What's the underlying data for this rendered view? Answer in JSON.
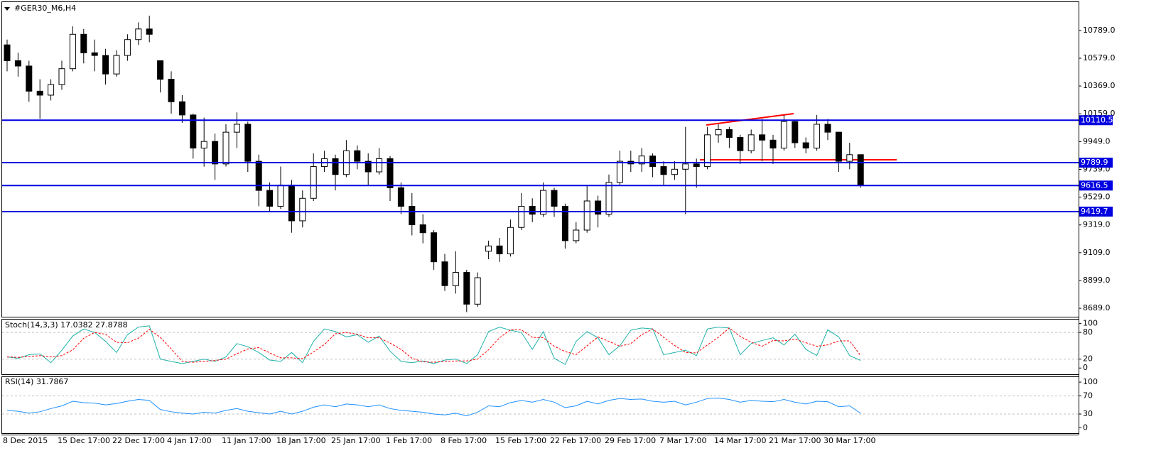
{
  "chart_data": [
    {
      "type": "candlestick",
      "title": "#GER30_M6,H4",
      "categories": [
        "8 Dec 2015",
        null,
        null,
        null,
        null,
        "15 Dec 17:00",
        null,
        null,
        null,
        null,
        "22 Dec 17:00",
        null,
        null,
        null,
        null,
        "4 Jan 17:00",
        null,
        null,
        null,
        null,
        "11 Jan 17:00",
        null,
        null,
        null,
        null,
        "18 Jan 17:00",
        null,
        null,
        null,
        null,
        "25 Jan 17:00",
        null,
        null,
        null,
        null,
        "1 Feb 17:00",
        null,
        null,
        null,
        null,
        "8 Feb 17:00",
        null,
        null,
        null,
        null,
        "15 Feb 17:00",
        null,
        null,
        null,
        null,
        "22 Feb 17:00",
        null,
        null,
        null,
        null,
        "29 Feb 17:00",
        null,
        null,
        null,
        null,
        "7 Mar 17:00",
        null,
        null,
        null,
        null,
        "14 Mar 17:00",
        null,
        null,
        null,
        null,
        "21 Mar 17:00",
        null,
        null,
        null,
        null,
        "30 Mar 17:00",
        null,
        null,
        null
      ],
      "open": [
        10680,
        10560,
        10520,
        10330,
        10300,
        10380,
        10500,
        10760,
        10620,
        10600,
        10460,
        10600,
        10720,
        10800,
        10560,
        10420,
        10250,
        10150,
        9900,
        9950,
        9780,
        10020,
        10080,
        9800,
        9580,
        9460,
        9620,
        9350,
        9520,
        9760,
        9820,
        9700,
        9880,
        9800,
        9720,
        9820,
        9600,
        9460,
        9320,
        9260,
        9040,
        8860,
        8960,
        8720,
        9120,
        9160,
        9100,
        9300,
        9460,
        9400,
        9580,
        9460,
        9200,
        9280,
        9500,
        9400,
        9640,
        9800,
        9780,
        9840,
        9760,
        9700,
        9740,
        9780,
        9760,
        10000,
        10040,
        9980,
        9880,
        10000,
        9960,
        9900,
        10100,
        9940,
        9900,
        10080,
        10020,
        9800,
        9850
      ],
      "high": [
        10720,
        10620,
        10560,
        10420,
        10420,
        10560,
        10820,
        10800,
        10720,
        10650,
        10640,
        10760,
        10850,
        10900,
        10560,
        10480,
        10300,
        10160,
        10130,
        10010,
        10080,
        10170,
        10100,
        9850,
        9640,
        9760,
        9660,
        9580,
        9860,
        9880,
        9850,
        9960,
        9920,
        9860,
        9900,
        9840,
        9640,
        9560,
        9400,
        9280,
        9100,
        9120,
        8980,
        8960,
        9200,
        9220,
        9360,
        9560,
        9520,
        9640,
        9600,
        9480,
        9340,
        9620,
        9540,
        9700,
        9880,
        9880,
        9900,
        9860,
        9800,
        9800,
        10060,
        9820,
        10060,
        10080,
        10060,
        10000,
        10040,
        10120,
        10000,
        10150,
        10110,
        9980,
        10150,
        10120,
        10020,
        9940,
        9850
      ],
      "low": [
        10480,
        10440,
        10250,
        10120,
        10260,
        10340,
        10480,
        10540,
        10480,
        10380,
        10440,
        10560,
        10680,
        10700,
        10320,
        10160,
        10090,
        9820,
        9760,
        9660,
        9760,
        9900,
        9720,
        9460,
        9420,
        9440,
        9260,
        9300,
        9500,
        9720,
        9580,
        9680,
        9740,
        9620,
        9700,
        9500,
        9400,
        9240,
        9180,
        8980,
        8820,
        8800,
        8660,
        8700,
        9060,
        9040,
        9080,
        9280,
        9340,
        9380,
        9380,
        9140,
        9180,
        9260,
        9300,
        9380,
        9620,
        9720,
        9720,
        9680,
        9620,
        9660,
        9400,
        9600,
        9740,
        9940,
        9900,
        9780,
        9860,
        9800,
        9780,
        9880,
        9900,
        9860,
        9880,
        9960,
        9720,
        9740,
        9600
      ],
      "close": [
        10560,
        10520,
        10330,
        10300,
        10380,
        10500,
        10760,
        10620,
        10600,
        10460,
        10600,
        10720,
        10800,
        10760,
        10420,
        10250,
        10150,
        9900,
        9950,
        9780,
        10020,
        10080,
        9800,
        9580,
        9460,
        9620,
        9350,
        9520,
        9760,
        9820,
        9700,
        9880,
        9800,
        9720,
        9820,
        9600,
        9460,
        9320,
        9260,
        9040,
        8860,
        8960,
        8720,
        8920,
        9160,
        9100,
        9300,
        9460,
        9400,
        9580,
        9460,
        9200,
        9280,
        9500,
        9400,
        9640,
        9800,
        9780,
        9840,
        9760,
        9700,
        9740,
        9780,
        9760,
        10000,
        10040,
        9980,
        9880,
        10000,
        9960,
        9900,
        10100,
        9940,
        9900,
        10080,
        10020,
        9800,
        9850,
        9620
      ],
      "ylim": [
        8625,
        11003
      ],
      "yticks": [
        {
          "value": 10789,
          "label": "10789.0"
        },
        {
          "value": 10579,
          "label": "10579.0"
        },
        {
          "value": 10369,
          "label": "10369.0"
        },
        {
          "value": 10159,
          "label": "10159.0"
        },
        {
          "value": 9949,
          "label": "9949.0"
        },
        {
          "value": 9739,
          "label": "9739.0"
        },
        {
          "value": 9529,
          "label": "9529.0"
        },
        {
          "value": 9319,
          "label": "9319.0"
        },
        {
          "value": 9109,
          "label": "9109.0"
        },
        {
          "value": 8899,
          "label": "8899.0"
        },
        {
          "value": 8689,
          "label": "8689.0"
        }
      ],
      "levels": [
        {
          "value": 10110.5,
          "label": "10110.5"
        },
        {
          "value": 9789.9,
          "label": "9789.9"
        },
        {
          "value": 9616.5,
          "label": "9616.5"
        },
        {
          "value": 9419.7,
          "label": "9419.7"
        }
      ],
      "level_color": "#0000e0",
      "up_color": "#ffffff",
      "down_color": "#000000"
    },
    {
      "type": "line",
      "title": "Stoch(14,3,3) 17.0382 27.8788",
      "series": [
        {
          "color": "#20b2aa",
          "dashed": false,
          "values": [
            25,
            22,
            30,
            32,
            12,
            40,
            72,
            88,
            80,
            60,
            35,
            75,
            92,
            95,
            20,
            15,
            10,
            15,
            20,
            15,
            25,
            55,
            48,
            35,
            18,
            15,
            35,
            12,
            60,
            88,
            82,
            70,
            75,
            58,
            72,
            38,
            15,
            12,
            16,
            10,
            18,
            20,
            10,
            30,
            82,
            92,
            85,
            80,
            42,
            82,
            22,
            8,
            60,
            82,
            68,
            30,
            50,
            85,
            90,
            88,
            30,
            35,
            40,
            28,
            88,
            92,
            90,
            30,
            55,
            62,
            68,
            52,
            76,
            42,
            28,
            86,
            70,
            28,
            17.0382
          ]
        },
        {
          "color": "#ff0000",
          "dashed": true,
          "values": [
            25,
            24,
            26,
            28,
            25,
            28,
            41,
            67,
            80,
            76,
            58,
            57,
            67,
            87,
            69,
            43,
            15,
            13,
            15,
            17,
            20,
            32,
            43,
            46,
            34,
            23,
            23,
            21,
            36,
            53,
            77,
            80,
            76,
            68,
            68,
            56,
            42,
            22,
            14,
            13,
            15,
            16,
            16,
            20,
            41,
            68,
            86,
            86,
            69,
            68,
            49,
            37,
            30,
            50,
            70,
            60,
            49,
            55,
            75,
            88,
            69,
            51,
            35,
            34,
            52,
            69,
            90,
            71,
            58,
            49,
            62,
            61,
            65,
            57,
            49,
            52,
            61,
            61,
            27.8788
          ]
        }
      ],
      "ylim": [
        -14,
        109
      ],
      "yticks": [
        100,
        80,
        20,
        0
      ],
      "levels": [
        80,
        20
      ]
    },
    {
      "type": "line",
      "title": "RSI(14) 31.7867",
      "series": [
        {
          "color": "#1e90ff",
          "dashed": false,
          "values": [
            38,
            36,
            32,
            35,
            42,
            48,
            58,
            55,
            54,
            50,
            53,
            58,
            62,
            60,
            40,
            35,
            32,
            30,
            34,
            32,
            38,
            42,
            36,
            33,
            30,
            36,
            30,
            36,
            45,
            50,
            46,
            52,
            50,
            46,
            50,
            42,
            38,
            36,
            34,
            30,
            28,
            32,
            26,
            34,
            48,
            46,
            55,
            60,
            56,
            62,
            56,
            44,
            48,
            58,
            52,
            60,
            64,
            62,
            63,
            58,
            56,
            58,
            50,
            56,
            64,
            65,
            62,
            56,
            60,
            58,
            57,
            62,
            56,
            52,
            58,
            57,
            46,
            48,
            31.7867
          ]
        }
      ],
      "ylim": [
        -12,
        111
      ],
      "yticks": [
        100,
        70,
        30,
        0
      ],
      "levels": [
        70,
        30
      ]
    }
  ]
}
